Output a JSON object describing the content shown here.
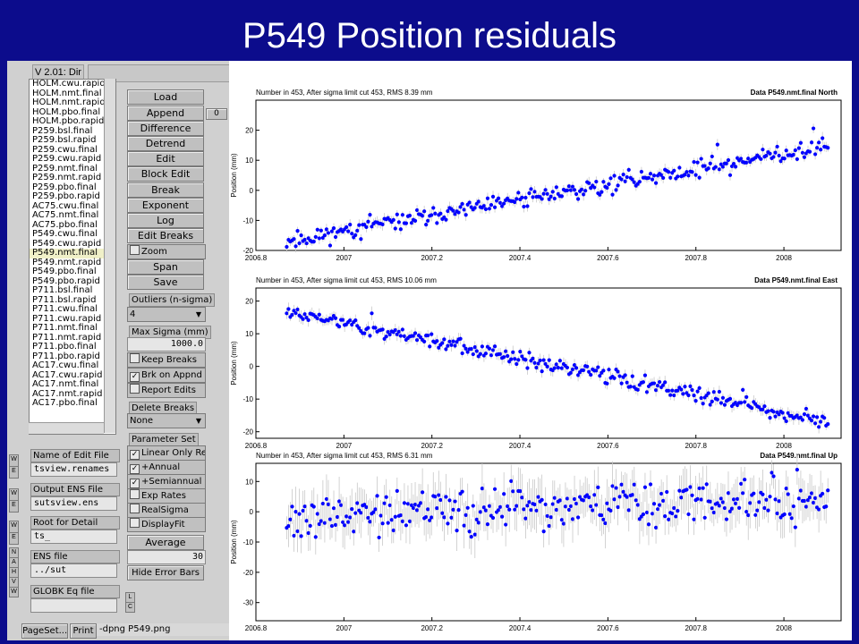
{
  "slide_title": "P549 Position residuals",
  "app": {
    "version_label": "V 2.01: Dir",
    "files": [
      "HOLM.cwu.rapid",
      "HOLM.nmt.final",
      "HOLM.nmt.rapid",
      "HOLM.pbo.final",
      "HOLM.pbo.rapid",
      "P259.bsl.final",
      "P259.bsl.rapid",
      "P259.cwu.final",
      "P259.cwu.rapid",
      "P259.nmt.final",
      "P259.nmt.rapid",
      "P259.pbo.final",
      "P259.pbo.rapid",
      "AC75.cwu.final",
      "AC75.nmt.final",
      "AC75.pbo.final",
      "P549.cwu.final",
      "P549.cwu.rapid",
      "P549.nmt.final",
      "P549.nmt.rapid",
      "P549.pbo.final",
      "P549.pbo.rapid",
      "P711.bsl.final",
      "P711.bsl.rapid",
      "P711.cwu.final",
      "P711.cwu.rapid",
      "P711.nmt.final",
      "P711.nmt.rapid",
      "P711.pbo.final",
      "P711.pbo.rapid",
      "AC17.cwu.final",
      "AC17.cwu.rapid",
      "AC17.nmt.final",
      "AC17.nmt.rapid",
      "AC17.pbo.final"
    ],
    "selected_file_index": 18,
    "buttons": {
      "load": "Load",
      "append": "Append",
      "difference": "Difference",
      "detrend": "Detrend",
      "edit": "Edit",
      "block_edit": "Block Edit",
      "break": "Break",
      "exponent": "Exponent",
      "log": "Log",
      "edit_breaks": "Edit Breaks",
      "span": "Span",
      "save": "Save",
      "average": "Average",
      "hide_error_bars": "Hide Error Bars",
      "pageset": "PageSet...",
      "print": "Print",
      "append_side": "0"
    },
    "zoom_label": "Zoom",
    "outliers": {
      "label": "Outliers (n-sigma)",
      "value": "4"
    },
    "max_sigma": {
      "label": "Max Sigma (mm)",
      "value": "1000.0"
    },
    "keep_breaks": "Keep Breaks",
    "brk_on_appnd": "Brk on Appnd",
    "report_edits": "Report Edits",
    "delete_breaks": {
      "label": "Delete Breaks",
      "value": "None"
    },
    "parameter_set": {
      "label": "Parameter Set",
      "linear": "Linear Only Re...",
      "annual": "+Annual",
      "semiannual": "+Semiannual",
      "exp_rates": "Exp Rates",
      "real_sigma": "RealSigma",
      "display_fit": "DisplayFit"
    },
    "average_value": "30",
    "edit_file": {
      "label": "Name of Edit File",
      "value": "tsview.renames"
    },
    "output_ens": {
      "label": "Output ENS File",
      "value": "sutsview.ens"
    },
    "root_detail": {
      "label": "Root for Detail",
      "value": "ts_"
    },
    "ens_file": {
      "label": "ENS file",
      "value": "../sut"
    },
    "globk_eq": {
      "label": "GLOBK Eq file",
      "value": ""
    },
    "print_cmd": "-dpng P549.png",
    "mini_labels": {
      "w": "W",
      "e": "E",
      "n": "N",
      "a": "A",
      "h": "H",
      "v": "V",
      "l": "L",
      "c": "C"
    }
  },
  "plots": [
    {
      "header_left": "Number in     453, After sigma limit cut   453, RMS   8.39 mm",
      "header_right": "Data P549.nmt.final North",
      "ylabel": "Position (mm)",
      "ylim": [
        -20,
        30
      ],
      "yticks": [
        "-20",
        "-10",
        "0",
        "10",
        "20"
      ],
      "ytickvals": [
        -20,
        -10,
        0,
        10,
        20
      ],
      "seed": 11,
      "start": -17,
      "end": 15,
      "noise": 2.2,
      "err": 1.5
    },
    {
      "header_left": "Number in     453, After sigma limit cut   453, RMS  10.06 mm",
      "header_right": "Data P549.nmt.final East",
      "ylabel": "Position (mm)",
      "ylim": [
        -22,
        24
      ],
      "yticks": [
        "-20",
        "-10",
        "0",
        "10",
        "20"
      ],
      "ytickvals": [
        -20,
        -10,
        0,
        10,
        20
      ],
      "seed": 23,
      "start": 17,
      "end": -17,
      "noise": 1.8,
      "err": 1.5
    },
    {
      "header_left": "Number in     453, After sigma limit cut   453, RMS   6.31 mm",
      "header_right": "Data P549.nmt.final Up",
      "ylabel": "Position (mm)",
      "ylim": [
        -36,
        16
      ],
      "yticks": [
        "-30",
        "-20",
        "-10",
        "0",
        "10"
      ],
      "ytickvals": [
        -30,
        -20,
        -10,
        0,
        10
      ],
      "seed": 37,
      "start": -2,
      "end": 5,
      "noise": 5.5,
      "err": 6
    }
  ],
  "x_axis": {
    "xlim": [
      2006.8,
      2008.13
    ],
    "ticks": [
      "2006.8",
      "2007",
      "2007.2",
      "2007.4",
      "2007.6",
      "2007.8",
      "2008"
    ],
    "tickvals": [
      2006.8,
      2007.0,
      2007.2,
      2007.4,
      2007.6,
      2007.8,
      2008.0
    ],
    "data_start": 2006.87,
    "data_end": 2008.1
  },
  "colors": {
    "point": "#0000ff",
    "errbar": "#c8c8c8",
    "slide_bg": "#0c0c8c"
  }
}
